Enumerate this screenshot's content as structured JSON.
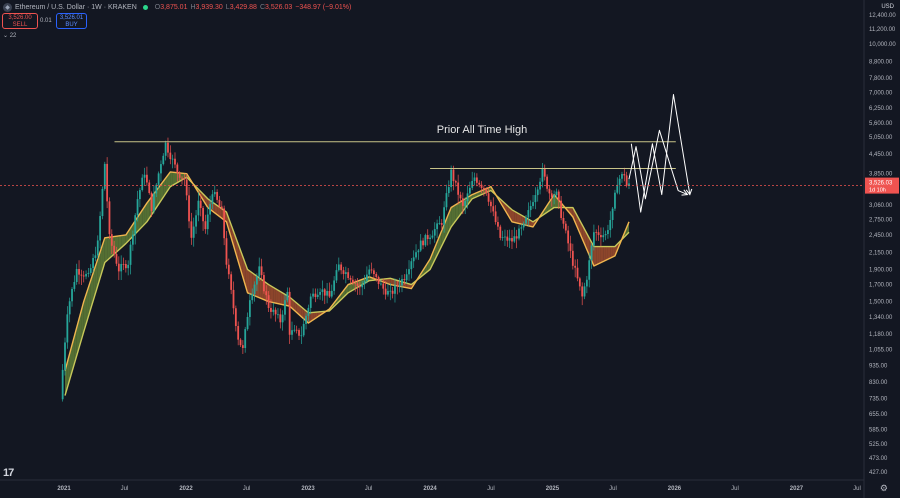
{
  "header": {
    "symbol": "Ethereum / U.S. Dollar · 1W · KRAKEN",
    "logo_icon": "ethereum-logo-icon",
    "o_label": "O",
    "o_value": "3,875.01",
    "h_label": "H",
    "h_value": "3,939.30",
    "l_label": "L",
    "l_value": "3,429.88",
    "c_label": "C",
    "c_value": "3,526.03",
    "change": "−348.97 (−9.01%)",
    "sell_price": "3,526.00",
    "sell_label": "SELL",
    "spread": "0.01",
    "buy_price": "3,526.01",
    "buy_label": "BUY",
    "indicator_count": "22",
    "currency": "USD"
  },
  "colors": {
    "bg": "#131722",
    "up": "#26a69a",
    "down": "#ef5350",
    "ma_fast": "#f0b64f",
    "ma_slow": "#c8c85a",
    "cloud_up": "#6b8e3a",
    "cloud_down": "#b5562f",
    "ath_line": "#c8c388",
    "price_line": "#ef5350"
  },
  "chart_data": {
    "type": "candlestick",
    "title": "",
    "y_scale": "log",
    "ylim": [
      400,
      15000
    ],
    "y_ticks": [
      "12,400.00",
      "11,200.00",
      "10,000.00",
      "8,800.00",
      "7,800.00",
      "7,000.00",
      "6,250.00",
      "5,600.00",
      "5,050.00",
      "4,450.00",
      "3,850.00",
      "3,060.00",
      "2,750.00",
      "2,450.00",
      "2,150.00",
      "1,900.00",
      "1,700.00",
      "1,500.00",
      "1,340.00",
      "1,180.00",
      "1,055.00",
      "935.00",
      "830.00",
      "735.00",
      "655.00",
      "585.00",
      "525.00",
      "473.00",
      "427.00"
    ],
    "x_ticks": [
      "2021",
      "Jul",
      "2022",
      "Jul",
      "2023",
      "Jul",
      "2024",
      "Jul",
      "2025",
      "Jul",
      "2026",
      "Jul",
      "2027",
      "Jul"
    ],
    "x_tick_dates": [
      "2021-01-01",
      "2021-07-01",
      "2022-01-01",
      "2022-07-01",
      "2023-01-01",
      "2023-07-01",
      "2024-01-01",
      "2024-07-01",
      "2025-01-01",
      "2025-07-01",
      "2026-01-01",
      "2026-07-01",
      "2027-01-01",
      "2027-07-01"
    ],
    "current_price_label": "3,526.03",
    "current_price_countdown": "1d 10h",
    "annotation": "Prior All Time High",
    "price_path": [
      [
        "2020-12-28",
        730
      ],
      [
        "2021-01-18",
        1400
      ],
      [
        "2021-02-15",
        1900
      ],
      [
        "2021-03-22",
        1800
      ],
      [
        "2021-04-19",
        2300
      ],
      [
        "2021-05-10",
        4150
      ],
      [
        "2021-05-24",
        2400
      ],
      [
        "2021-06-21",
        1900
      ],
      [
        "2021-07-19",
        2000
      ],
      [
        "2021-08-16",
        3200
      ],
      [
        "2021-09-06",
        3900
      ],
      [
        "2021-09-27",
        3000
      ],
      [
        "2021-10-25",
        4200
      ],
      [
        "2021-11-08",
        4800
      ],
      [
        "2021-12-13",
        3900
      ],
      [
        "2022-01-03",
        3700
      ],
      [
        "2022-01-24",
        2400
      ],
      [
        "2022-02-14",
        3100
      ],
      [
        "2022-03-07",
        2550
      ],
      [
        "2022-03-28",
        3400
      ],
      [
        "2022-04-25",
        2900
      ],
      [
        "2022-05-09",
        2000
      ],
      [
        "2022-06-13",
        1150
      ],
      [
        "2022-06-27",
        1050
      ],
      [
        "2022-07-18",
        1550
      ],
      [
        "2022-08-15",
        1900
      ],
      [
        "2022-09-12",
        1450
      ],
      [
        "2022-10-17",
        1300
      ],
      [
        "2022-11-07",
        1600
      ],
      [
        "2022-11-14",
        1200
      ],
      [
        "2022-12-19",
        1180
      ],
      [
        "2023-01-16",
        1550
      ],
      [
        "2023-02-13",
        1650
      ],
      [
        "2023-03-13",
        1550
      ],
      [
        "2023-04-10",
        1950
      ],
      [
        "2023-05-15",
        1800
      ],
      [
        "2023-06-12",
        1650
      ],
      [
        "2023-07-10",
        1900
      ],
      [
        "2023-08-21",
        1650
      ],
      [
        "2023-09-11",
        1580
      ],
      [
        "2023-10-23",
        1800
      ],
      [
        "2023-11-13",
        2050
      ],
      [
        "2023-12-11",
        2300
      ],
      [
        "2024-01-15",
        2500
      ],
      [
        "2024-02-12",
        2700
      ],
      [
        "2024-03-11",
        3900
      ],
      [
        "2024-04-15",
        3000
      ],
      [
        "2024-05-20",
        3750
      ],
      [
        "2024-06-24",
        3400
      ],
      [
        "2024-08-05",
        2400
      ],
      [
        "2024-09-09",
        2350
      ],
      [
        "2024-10-14",
        2600
      ],
      [
        "2024-11-11",
        3200
      ],
      [
        "2024-12-09",
        3900
      ],
      [
        "2024-12-30",
        3350
      ],
      [
        "2025-01-20",
        3300
      ],
      [
        "2025-02-10",
        2650
      ],
      [
        "2025-03-10",
        2000
      ],
      [
        "2025-04-07",
        1550
      ],
      [
        "2025-04-21",
        1800
      ],
      [
        "2025-05-12",
        2500
      ],
      [
        "2025-06-16",
        2450
      ],
      [
        "2025-07-07",
        2900
      ],
      [
        "2025-07-21",
        3650
      ],
      [
        "2025-08-11",
        3850
      ],
      [
        "2025-08-18",
        3526
      ]
    ],
    "ma_fast": [
      [
        "2021-01-04",
        900
      ],
      [
        "2021-03-01",
        1500
      ],
      [
        "2021-05-03",
        2400
      ],
      [
        "2021-07-05",
        2450
      ],
      [
        "2021-09-06",
        3100
      ],
      [
        "2021-11-15",
        3900
      ],
      [
        "2022-01-03",
        3850
      ],
      [
        "2022-03-07",
        3000
      ],
      [
        "2022-05-02",
        2700
      ],
      [
        "2022-07-04",
        1600
      ],
      [
        "2022-09-05",
        1500
      ],
      [
        "2022-11-07",
        1450
      ],
      [
        "2023-01-02",
        1280
      ],
      [
        "2023-03-06",
        1420
      ],
      [
        "2023-05-01",
        1700
      ],
      [
        "2023-07-03",
        1800
      ],
      [
        "2023-09-04",
        1700
      ],
      [
        "2023-11-06",
        1650
      ],
      [
        "2024-01-01",
        2050
      ],
      [
        "2024-03-04",
        3000
      ],
      [
        "2024-05-06",
        3300
      ],
      [
        "2024-07-01",
        3500
      ],
      [
        "2024-09-02",
        2700
      ],
      [
        "2024-11-04",
        2600
      ],
      [
        "2025-01-06",
        3300
      ],
      [
        "2025-03-03",
        2800
      ],
      [
        "2025-05-05",
        1950
      ],
      [
        "2025-07-07",
        2100
      ],
      [
        "2025-08-18",
        2700
      ]
    ],
    "ma_slow": [
      [
        "2021-01-04",
        750
      ],
      [
        "2021-03-01",
        1200
      ],
      [
        "2021-05-03",
        2000
      ],
      [
        "2021-07-05",
        2300
      ],
      [
        "2021-09-06",
        2700
      ],
      [
        "2021-11-15",
        3500
      ],
      [
        "2022-01-03",
        3750
      ],
      [
        "2022-03-07",
        3200
      ],
      [
        "2022-05-02",
        2900
      ],
      [
        "2022-07-04",
        1900
      ],
      [
        "2022-09-05",
        1700
      ],
      [
        "2022-11-07",
        1550
      ],
      [
        "2023-01-02",
        1380
      ],
      [
        "2023-03-06",
        1400
      ],
      [
        "2023-05-01",
        1600
      ],
      [
        "2023-07-03",
        1750
      ],
      [
        "2023-09-04",
        1780
      ],
      [
        "2023-11-06",
        1700
      ],
      [
        "2024-01-01",
        1900
      ],
      [
        "2024-03-04",
        2600
      ],
      [
        "2024-05-06",
        3200
      ],
      [
        "2024-07-01",
        3400
      ],
      [
        "2024-09-02",
        2950
      ],
      [
        "2024-11-04",
        2700
      ],
      [
        "2025-01-06",
        3000
      ],
      [
        "2025-03-03",
        3000
      ],
      [
        "2025-05-05",
        2250
      ],
      [
        "2025-07-07",
        2250
      ],
      [
        "2025-08-18",
        2500
      ]
    ],
    "horizontal_lines": [
      {
        "from": "2021-06-01",
        "to": "2026-01-05",
        "y": 4870
      },
      {
        "from": "2024-01-01",
        "to": "2026-01-05",
        "y": 4000
      }
    ],
    "projection_white": [
      [
        "2025-08-25",
        4800
      ],
      [
        "2025-09-22",
        2900
      ],
      [
        "2025-10-27",
        4800
      ],
      [
        "2025-11-24",
        3300
      ],
      [
        "2025-12-29",
        6900
      ],
      [
        "2026-02-16",
        3300
      ]
    ],
    "projection_white_2": [
      [
        "2025-08-18",
        3700
      ],
      [
        "2025-09-08",
        4700
      ],
      [
        "2025-10-06",
        3200
      ],
      [
        "2025-11-17",
        5300
      ],
      [
        "2026-01-12",
        3400
      ],
      [
        "2026-02-09",
        3300
      ]
    ]
  }
}
